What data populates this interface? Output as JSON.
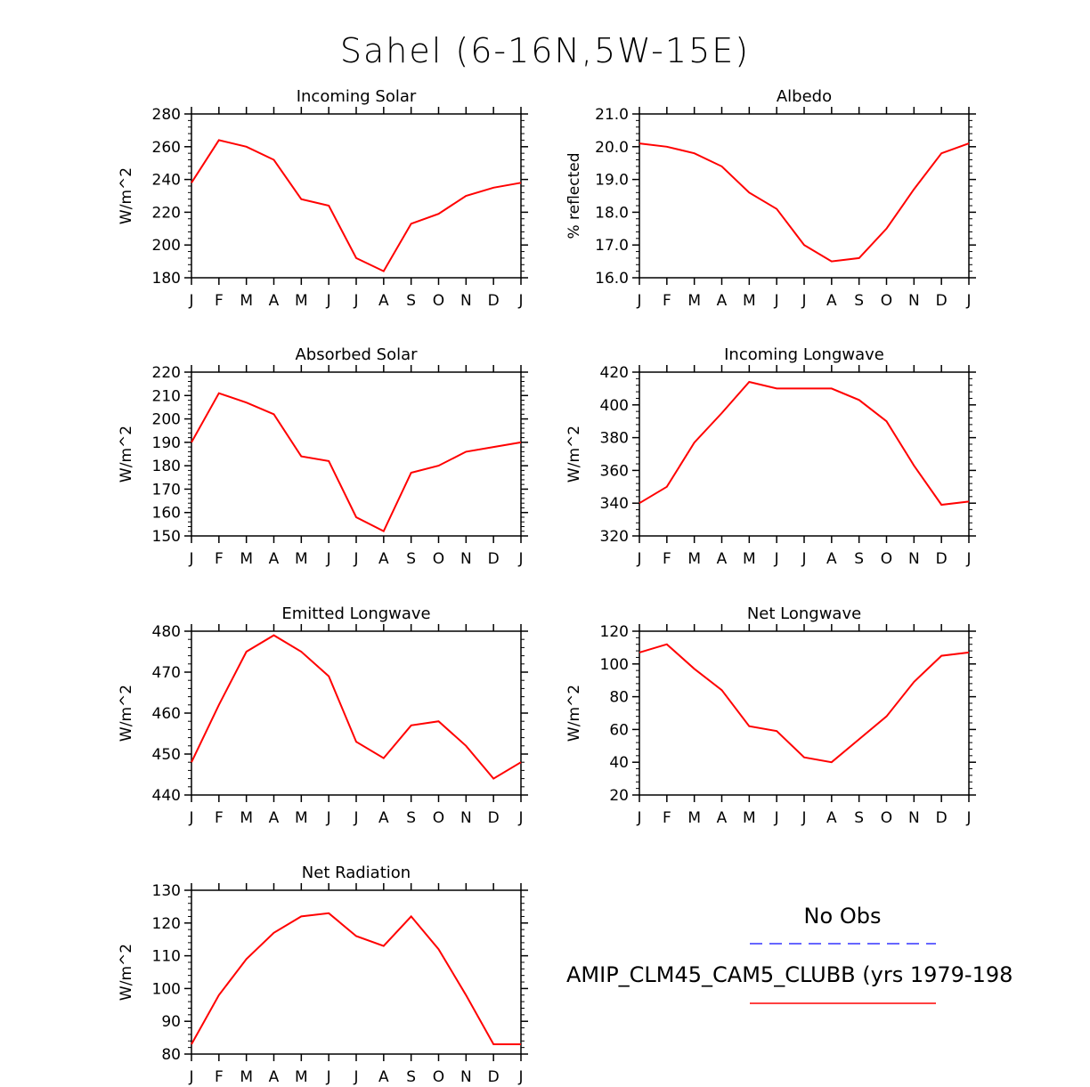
{
  "title": "Sahel (6-16N,5W-15E)",
  "months": [
    "J",
    "F",
    "M",
    "A",
    "M",
    "J",
    "J",
    "A",
    "S",
    "O",
    "N",
    "D",
    "J"
  ],
  "legend": {
    "obs_label": "No Obs",
    "obs_color": "#3333ff",
    "model_label": "AMIP_CLM45_CAM5_CLUBB (yrs 1979-198",
    "model_color": "#ff0000"
  },
  "chart_data": [
    {
      "type": "line",
      "title": "Incoming Solar",
      "ylabel": "W/m^2",
      "ylim": [
        180,
        280
      ],
      "yticks": [
        "180",
        "200",
        "220",
        "240",
        "260",
        "280"
      ],
      "series": [
        {
          "values": [
            238,
            264,
            260,
            252,
            228,
            224,
            192,
            184,
            213,
            219,
            230,
            235,
            238
          ]
        }
      ]
    },
    {
      "type": "line",
      "title": "Albedo",
      "ylabel": "% reflected",
      "ylim": [
        16.0,
        21.0
      ],
      "yticks": [
        "16.0",
        "17.0",
        "18.0",
        "19.0",
        "20.0",
        "21.0"
      ],
      "series": [
        {
          "values": [
            20.1,
            20.0,
            19.8,
            19.4,
            18.6,
            18.1,
            17.0,
            16.5,
            16.6,
            17.5,
            18.7,
            19.8,
            20.1
          ]
        }
      ]
    },
    {
      "type": "line",
      "title": "Absorbed Solar",
      "ylabel": "W/m^2",
      "ylim": [
        150,
        220
      ],
      "yticks": [
        "150",
        "160",
        "170",
        "180",
        "190",
        "200",
        "210",
        "220"
      ],
      "series": [
        {
          "values": [
            190,
            211,
            207,
            202,
            184,
            182,
            158,
            152,
            177,
            180,
            186,
            188,
            190
          ]
        }
      ]
    },
    {
      "type": "line",
      "title": "Incoming Longwave",
      "ylabel": "W/m^2",
      "ylim": [
        320,
        420
      ],
      "yticks": [
        "320",
        "340",
        "360",
        "380",
        "400",
        "420"
      ],
      "series": [
        {
          "values": [
            340,
            350,
            377,
            395,
            414,
            410,
            410,
            410,
            403,
            390,
            363,
            339,
            341
          ]
        }
      ]
    },
    {
      "type": "line",
      "title": "Emitted Longwave",
      "ylabel": "W/m^2",
      "ylim": [
        440,
        480
      ],
      "yticks": [
        "440",
        "450",
        "460",
        "470",
        "480"
      ],
      "series": [
        {
          "values": [
            448,
            462,
            475,
            479,
            475,
            469,
            453,
            449,
            457,
            458,
            452,
            444,
            448
          ]
        }
      ]
    },
    {
      "type": "line",
      "title": "Net Longwave",
      "ylabel": "W/m^2",
      "ylim": [
        20,
        120
      ],
      "yticks": [
        "20",
        "40",
        "60",
        "80",
        "100",
        "120"
      ],
      "series": [
        {
          "values": [
            107,
            112,
            97,
            84,
            62,
            59,
            43,
            40,
            54,
            68,
            89,
            105,
            107
          ]
        }
      ]
    },
    {
      "type": "line",
      "title": "Net Radiation",
      "ylabel": "W/m^2",
      "ylim": [
        80,
        130
      ],
      "yticks": [
        "80",
        "90",
        "100",
        "110",
        "120",
        "130"
      ],
      "series": [
        {
          "values": [
            83,
            98,
            109,
            117,
            122,
            123,
            116,
            113,
            122,
            112,
            98,
            83,
            83
          ]
        }
      ]
    }
  ]
}
